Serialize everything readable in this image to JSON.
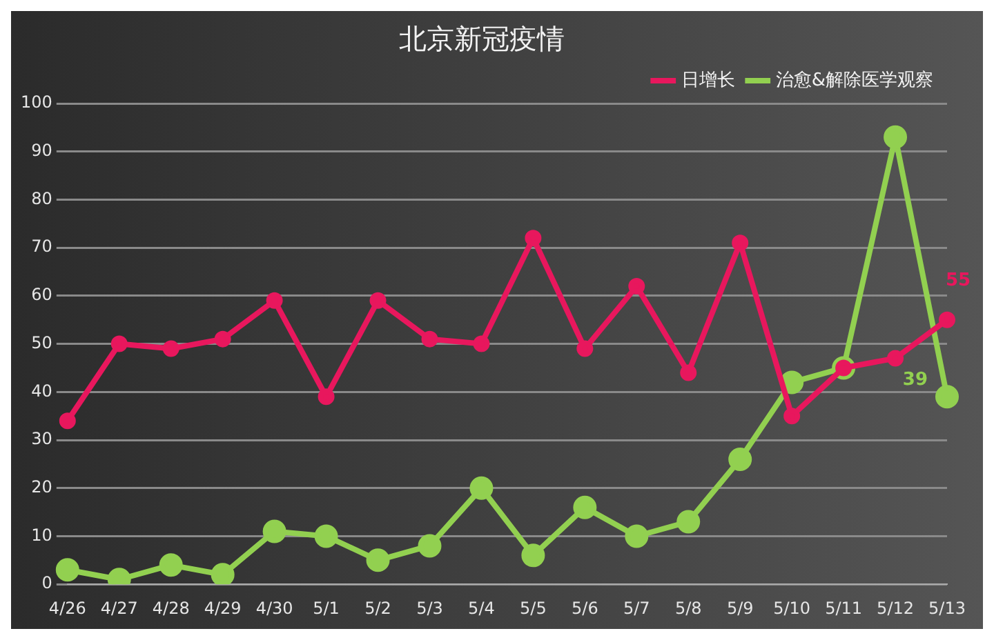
{
  "chart_data": {
    "type": "line",
    "title": "北京新冠疫情",
    "categories": [
      "4/26",
      "4/27",
      "4/28",
      "4/29",
      "4/30",
      "5/1",
      "5/2",
      "5/3",
      "5/4",
      "5/5",
      "5/6",
      "5/7",
      "5/8",
      "5/9",
      "5/10",
      "5/11",
      "5/12",
      "5/13"
    ],
    "series": [
      {
        "name": "日增长",
        "color": "#e8175d",
        "values": [
          34,
          50,
          49,
          51,
          59,
          39,
          59,
          51,
          50,
          72,
          49,
          62,
          44,
          71,
          35,
          45,
          47,
          55
        ],
        "value_labels": [
          null,
          null,
          null,
          null,
          null,
          null,
          null,
          null,
          null,
          null,
          null,
          null,
          null,
          null,
          null,
          null,
          null,
          "55"
        ]
      },
      {
        "name": "治愈&解除医学观察",
        "color": "#92d050",
        "values": [
          3,
          1,
          4,
          2,
          11,
          10,
          5,
          8,
          20,
          6,
          16,
          10,
          13,
          26,
          42,
          45,
          93,
          39
        ],
        "value_labels": [
          null,
          null,
          null,
          null,
          null,
          null,
          null,
          null,
          null,
          null,
          null,
          null,
          null,
          null,
          null,
          null,
          null,
          "39"
        ]
      }
    ],
    "ylim": [
      0,
      100
    ],
    "yticks": [
      0,
      10,
      20,
      30,
      40,
      50,
      60,
      70,
      80,
      90,
      100
    ],
    "grid": "y",
    "legend": "top right",
    "marker": "circle",
    "line_style": "solid"
  }
}
